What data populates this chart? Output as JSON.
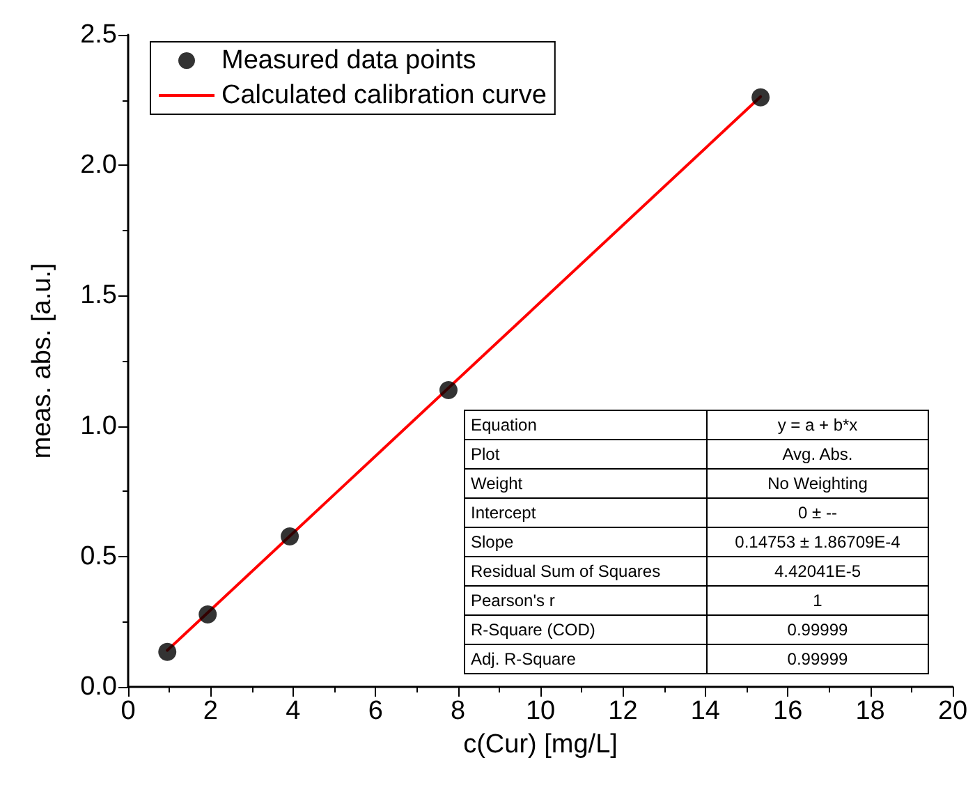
{
  "chart_data": {
    "type": "scatter",
    "xlabel": "c(Cur) [mg/L]",
    "ylabel": "meas. abs. [a.u.]",
    "xlim": [
      0,
      20
    ],
    "xticks": [
      0,
      2,
      4,
      6,
      8,
      10,
      12,
      14,
      16,
      18,
      20
    ],
    "ylim": [
      0,
      2.5
    ],
    "yticks": [
      {
        "value": 0,
        "label": "0.0"
      },
      0.5,
      {
        "value": 1,
        "label": "1.0"
      },
      1.5,
      {
        "value": 2,
        "label": "2.0"
      },
      2.5
    ],
    "grid": false,
    "legend": "top left",
    "marker": "circle",
    "series": [
      {
        "name": "Measured data points",
        "color": "#000000",
        "x": [
          0.95,
          1.93,
          3.92,
          7.77,
          15.34
        ],
        "values": [
          0.134,
          0.278,
          0.577,
          1.138,
          2.26
        ]
      },
      {
        "name": "Calculated calibration curve",
        "type": "line",
        "color": "#ff0000",
        "marker": "none",
        "line_style": "solid",
        "x": [
          0.95,
          15.34
        ],
        "values": [
          0.14,
          2.263
        ]
      }
    ],
    "annotations": [
      "Equation",
      "y = a + b*x",
      "Plot",
      "Avg. Abs.",
      "Weight",
      "No Weighting",
      "Intercept",
      "0 ± --",
      "Slope",
      "0.14753 ± 1.86709E-4",
      "Residual Sum of Squares",
      "4.42041E-5",
      "Pearson's r",
      "1",
      "R-Square (COD)",
      "0.99999",
      "Adj. R-Square",
      "0.99999"
    ]
  }
}
